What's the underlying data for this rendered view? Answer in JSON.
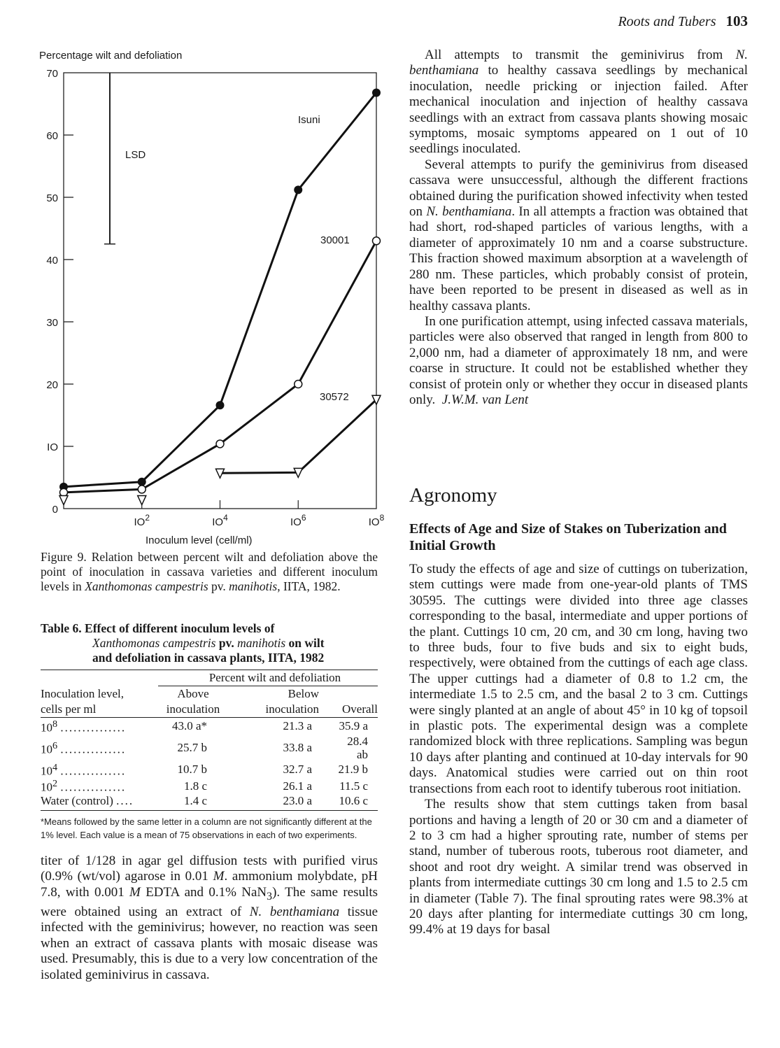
{
  "header": {
    "section": "Roots and Tubers",
    "page_number": "103"
  },
  "chart_data": {
    "type": "line",
    "ylabel": "Percentage wilt and defoliation",
    "xlabel": "Inoculum level (cell/ml)",
    "ylim": [
      0,
      70
    ],
    "y_ticks": [
      0,
      10,
      20,
      30,
      40,
      50,
      60,
      70
    ],
    "y_tick_labels": [
      "0",
      "IO",
      "20",
      "30",
      "40",
      "50",
      "60",
      "70"
    ],
    "x_scale": "log10",
    "xlim": [
      1,
      100000000
    ],
    "x_ticks": [
      100,
      10000,
      1000000,
      100000000
    ],
    "x_tick_labels": [
      {
        "base": "IO",
        "exp": "2"
      },
      {
        "base": "IO",
        "exp": "4"
      },
      {
        "base": "IO",
        "exp": "6"
      },
      {
        "base": "IO",
        "exp": "8"
      }
    ],
    "series": [
      {
        "name": "Isuni",
        "marker": "filled-circle",
        "x": [
          1,
          100,
          10000,
          1000000,
          100000000
        ],
        "y": [
          3.5,
          4.3,
          16.6,
          51.2,
          66.8
        ]
      },
      {
        "name": "30001",
        "marker": "open-circle",
        "x": [
          1,
          100,
          10000,
          1000000,
          100000000
        ],
        "y": [
          2.6,
          3.1,
          10.4,
          20.0,
          43.0
        ]
      },
      {
        "name": "30572",
        "marker": "open-triangle",
        "x": [
          1,
          100,
          10000,
          1000000,
          100000000
        ],
        "y": [
          1.4,
          1.4,
          5.7,
          5.8,
          17.5
        ]
      }
    ],
    "lsd": {
      "label": "LSD",
      "from": 42.5,
      "to": 70
    }
  },
  "figure_caption": {
    "prefix": "Figure 9. Relation between percent wilt and defoliation above the point of inoculation in cassava varieties and different inoculum levels in ",
    "organism": "Xanthomonas campestris",
    "mid": " pv. ",
    "pathovar": "manihotis",
    "suffix": ", IITA, 1982."
  },
  "table6": {
    "title_l1": "Table 6. Effect of different inoculum levels of",
    "title_l2_italic": "Xanthomonas campestris",
    "title_l2_bold": " pv. ",
    "title_l2_italic2": "manihotis",
    "title_l2_end": " on wilt",
    "title_l3": "and defoliation in cassava plants, IITA, 1982",
    "span_header": "Percent wilt and defoliation",
    "col0_l1": "Inoculation level,",
    "col0_l2": "cells per ml",
    "col1_l1": "Above",
    "col1_l2": "inoculation",
    "col2_l1": "Below",
    "col2_l2": "inoculation",
    "col3_l2": "Overall",
    "rows": [
      {
        "base": "10",
        "exp": "8",
        "dots": "...............",
        "above": "43.0 a*",
        "below": "21.3 a",
        "overall": "35.9 a"
      },
      {
        "base": "10",
        "exp": "6",
        "dots": "...............",
        "above": "25.7 b",
        "below": "33.8 a",
        "overall": "28.4 ab"
      },
      {
        "base": "10",
        "exp": "4",
        "dots": "...............",
        "above": "10.7 b",
        "below": "32.7 a",
        "overall": "21.9 b"
      },
      {
        "base": "10",
        "exp": "2",
        "dots": "...............",
        "above": "1.8 c",
        "below": "26.1 a",
        "overall": "11.5 c"
      },
      {
        "base": "Water (control)",
        "exp": "",
        "dots": "....",
        "above": "1.4 c",
        "below": "23.0 a",
        "overall": "10.6 c"
      }
    ],
    "footnote": "*Means followed by the same letter in a column are not significantly different at the 1% level. Each value is a mean of 75 observations in each of two experiments."
  },
  "left_para": {
    "t1": "titer of 1/128 in agar gel diffusion tests with purified virus (0.9% (wt/vol) agarose in 0.01 ",
    "m1": "M",
    "t2": ". ammonium molybdate, pH 7.8, with 0.001 ",
    "m2": "M",
    "t3": " EDTA and 0.1% NaN",
    "sub": "3",
    "t4": "). The same results were obtained using an extract of ",
    "nb": "N. benthamiana",
    "t5": " tissue infected with the geminivirus; however, no reaction was seen when an extract of cassava plants with mosaic disease was used. Presumably, this is due to a very low concentration of the isolated geminivirus in cassava."
  },
  "right_col": {
    "p1a": "All attempts to transmit the geminivirus from ",
    "p1nb": "N. benthamiana",
    "p1b": " to healthy cassava seedlings by mechanical inoculation, needle pricking or injection failed. After mechanical inoculation and injection of healthy cassava seedlings with an extract from cassava plants showing mosaic symptoms, mosaic symptoms appeared on 1 out of 10 seedlings inoculated.",
    "p2a": "Several attempts to purify the geminivirus from diseased cassava were unsuccessful, although the different fractions obtained during the purification showed infectivity when tested on ",
    "p2nb": "N. benthamiana",
    "p2b": ". In all attempts a fraction was obtained that had short, rod-shaped particles of various lengths, with a diameter of approximately 10 nm and a coarse substructure. This fraction showed maximum absorption at a wavelength of 280 nm. These particles, which probably consist of protein, have been reported to be present in diseased as well as in healthy cassava plants.",
    "p3": "In one purification attempt, using infected cassava materials, particles were also observed that ranged in length from 800 to 2,000 nm, had a diameter of approximately 18 nm, and were coarse in structure. It could not be established whether they consist of protein only or whether they occur in diseased plants only.",
    "author": "J.W.M. van Lent"
  },
  "agronomy": {
    "heading": "Agronomy",
    "subheading": "Effects of Age and Size of Stakes on Tuberization and Initial Growth",
    "p1": "To study the effects of age and size of cuttings on tuberization, stem cuttings were made from one-year-old plants of TMS 30595. The cuttings were divided into three age classes corresponding to the basal, intermediate and upper portions of the plant. Cuttings 10 cm, 20 cm, and 30 cm long, having two to three buds, four to five buds and six to eight buds, respectively, were obtained from the cuttings of each age class. The upper cuttings had a diameter of 0.8 to 1.2 cm, the intermediate 1.5 to 2.5 cm, and the basal 2 to 3 cm. Cuttings were singly planted at an angle of about 45° in 10 kg of topsoil in plastic pots. The experimental design was a complete randomized block with three replications. Sampling was begun 10 days after planting and continued at 10-day intervals for 90 days. Anatomical studies were carried out on thin root transections from each root to identify tuberous root initiation.",
    "p2": "The results show that stem cuttings taken from basal portions and having a length of 20 or 30 cm and a diameter of 2 to 3 cm had a higher sprouting rate, number of stems per stand, number of tuberous roots, tuberous root diameter, and shoot and root dry weight. A similar trend was observed in plants from intermediate cuttings 30 cm long and 1.5 to 2.5 cm in diameter (Table 7). The final sprouting rates were 98.3% at 20 days after planting for intermediate cuttings 30 cm long, 99.4% at 19 days for basal"
  }
}
